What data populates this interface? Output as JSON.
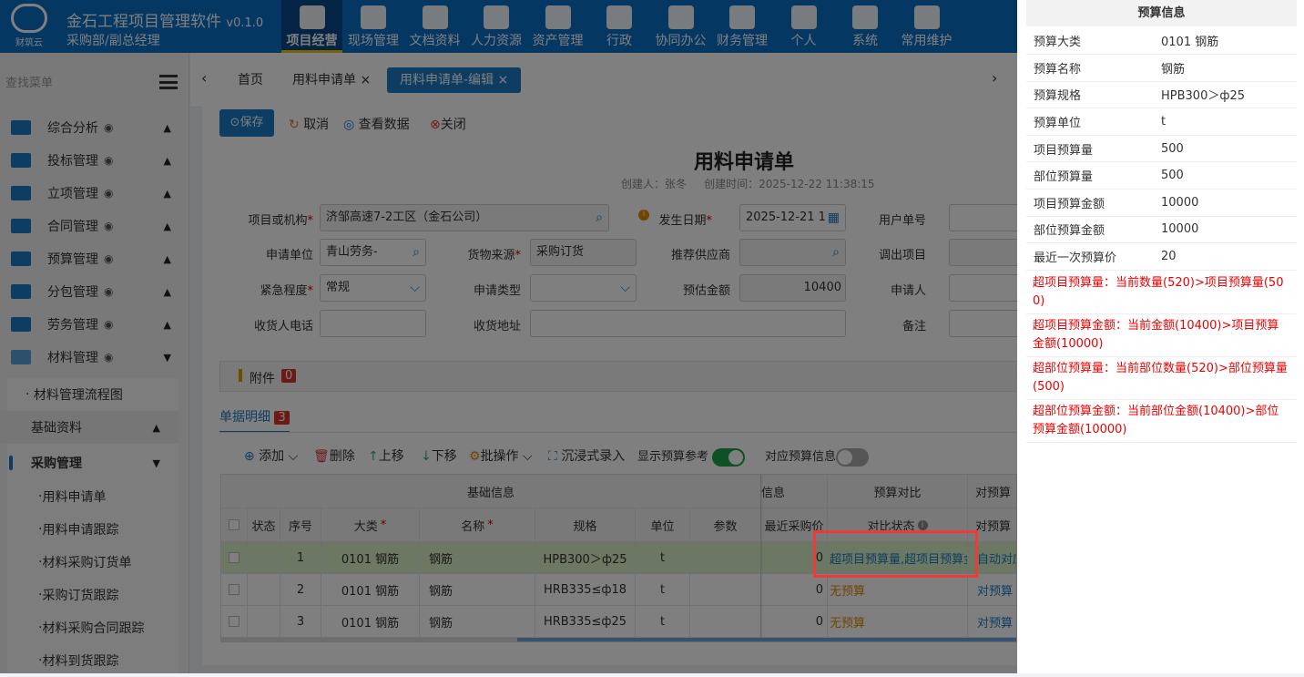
{
  "header": {
    "logo_text": "财筑云",
    "title": "金石工程项目管理软件",
    "version": "v0.1.0",
    "role": "采购部/副总经理",
    "nav": [
      {
        "label": "项目经营",
        "icon": "folder-doc-icon",
        "active": true
      },
      {
        "label": "现场管理",
        "icon": "worker-icon"
      },
      {
        "label": "文档资料",
        "icon": "document-icon"
      },
      {
        "label": "人力资源",
        "icon": "hr-icon"
      },
      {
        "label": "资产管理",
        "icon": "wallet-icon"
      },
      {
        "label": "行政",
        "icon": "monitor-icon"
      },
      {
        "label": "协同办公",
        "icon": "speaker-icon"
      },
      {
        "label": "财务管理",
        "icon": "money-bag-icon"
      },
      {
        "label": "个人",
        "icon": "user-icon"
      },
      {
        "label": "系统",
        "icon": "gear-icon"
      },
      {
        "label": "常用维护",
        "icon": "wrench-icon"
      }
    ]
  },
  "sidebar": {
    "search_placeholder": "查找菜单",
    "items": [
      {
        "label": "综合分析"
      },
      {
        "label": "投标管理"
      },
      {
        "label": "立项管理"
      },
      {
        "label": "合同管理"
      },
      {
        "label": "预算管理"
      },
      {
        "label": "分包管理"
      },
      {
        "label": "劳务管理"
      },
      {
        "label": "材料管理",
        "expanded": true
      }
    ],
    "sub": {
      "flow": "材料管理流程图",
      "basic": "基础资料",
      "purchase": "采购管理",
      "purchase_items": [
        "用料申请单",
        "用料申请跟踪",
        "材料采购订货单",
        "采购订货跟踪",
        "材料采购合同跟踪",
        "材料到货跟踪"
      ]
    }
  },
  "tabs": [
    {
      "label": "首页"
    },
    {
      "label": "用料申请单",
      "closable": true
    },
    {
      "label": "用料申请单-编辑",
      "closable": true,
      "active": true
    }
  ],
  "toolbar": {
    "save": "保存",
    "cancel": "取消",
    "view": "查看数据",
    "close": "关闭"
  },
  "form": {
    "title": "用料申请单",
    "creator": "创建人：张冬",
    "created_time": "创建时间：2025-12-22 11:38:15",
    "fields": {
      "org_label": "项目或机构",
      "org": "济邹高速7-2工区（金石公司）",
      "date_label": "发生日期",
      "date": "2025-12-21 1",
      "user_no_label": "用户单号",
      "unit_label": "申请单位",
      "unit": "青山劳务-",
      "source_label": "货物来源",
      "source": "采购订货",
      "supplier_label": "推荐供应商",
      "out_label": "调出项目",
      "urgency_label": "紧急程度",
      "urgency": "常规",
      "type_label": "申请类型",
      "amount_label": "预估金额",
      "amount": "10400",
      "applicant_label": "申请人",
      "phone_label": "收货人电话",
      "address_label": "收货地址",
      "remark_label": "备注"
    }
  },
  "attachment": {
    "label": "附件",
    "count": "0"
  },
  "detail": {
    "tab": "单据明细",
    "count": "3",
    "tools": {
      "add": "添加",
      "delete": "删除",
      "up": "上移",
      "down": "下移",
      "batch": "批操作",
      "immersive": "沉浸式录入",
      "show_budget": "显示预算参考",
      "show_budget_on": true,
      "budget_info": "对应预算信息",
      "budget_info_on": false
    },
    "group_headers": [
      "基础信息",
      "信息",
      "预算对比",
      "对预算"
    ],
    "columns": [
      "状态",
      "序号",
      "大类",
      "名称",
      "规格",
      "单位",
      "参数",
      "最近采购价",
      "对比状态",
      "对预算"
    ],
    "rows": [
      {
        "no": "1",
        "cat": "0101 钢筋",
        "name": "钢筋",
        "spec": "HPB300＞ф25",
        "unit": "t",
        "price": "0",
        "status": "超项目预算量,超项目预算金",
        "match": "自动对应"
      },
      {
        "no": "2",
        "cat": "0101 钢筋",
        "name": "钢筋",
        "spec": "HRB335≤ф18",
        "unit": "t",
        "price": "0",
        "status": "无预算",
        "match": "对预算"
      },
      {
        "no": "3",
        "cat": "0101 钢筋",
        "name": "钢筋",
        "spec": "HRB335≤ф25",
        "unit": "t",
        "price": "0",
        "status": "无预算",
        "match": "对预算"
      }
    ]
  },
  "panel": {
    "title": "预算信息",
    "rows": [
      {
        "k": "预算大类",
        "v": "0101 钢筋"
      },
      {
        "k": "预算名称",
        "v": "钢筋"
      },
      {
        "k": "预算规格",
        "v": "HPB300＞ф25"
      },
      {
        "k": "预算单位",
        "v": "t"
      },
      {
        "k": "项目预算量",
        "v": "500"
      },
      {
        "k": "部位预算量",
        "v": "500"
      },
      {
        "k": "项目预算金额",
        "v": "10000"
      },
      {
        "k": "部位预算金额",
        "v": "10000"
      },
      {
        "k": "最近一次预算价",
        "v": "20"
      }
    ],
    "warnings": [
      "超项目预算量：当前数量(520)>项目预算量(500)",
      "超项目预算金额：当前金额(10400)>项目预算金额(10000)",
      "超部位预算量：当前部位数量(520)>部位预算量(500)",
      "超部位预算金额：当前部位金额(10400)>部位预算金额(10000)"
    ]
  },
  "colors": {
    "primary": "#1a7bc6",
    "header": "#0b6fc7",
    "warning": "#e00000",
    "highlight": "#f03a3a"
  }
}
